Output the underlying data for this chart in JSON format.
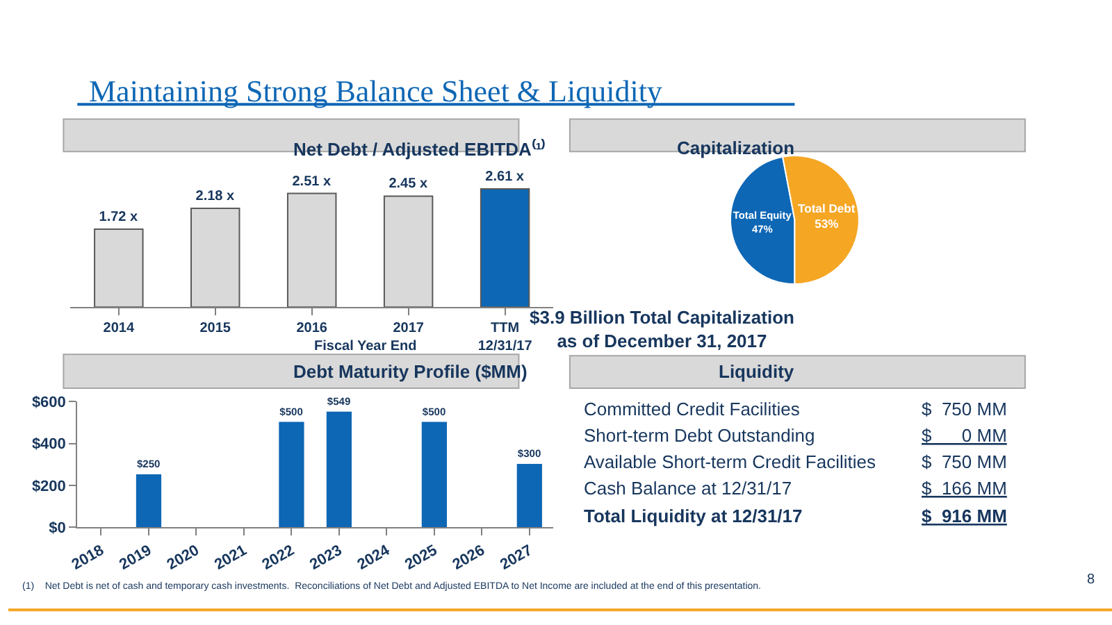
{
  "chart_data": [
    {
      "type": "bar",
      "title": "Net Debt / Adjusted EBITDA⁽¹⁾",
      "xlabel": "Fiscal Year End",
      "categories": [
        "2014",
        "2015",
        "2016",
        "2017",
        "TTM\n12/31/17"
      ],
      "values": [
        1.72,
        2.18,
        2.51,
        2.45,
        2.61
      ],
      "colors": [
        "#d9d9d9",
        "#d9d9d9",
        "#d9d9d9",
        "#d9d9d9",
        "#0e67b5"
      ],
      "value_labels": [
        "1.72 x",
        "2.18 x",
        "2.51 x",
        "2.45 x",
        "2.61 x"
      ],
      "grid": false
    },
    {
      "type": "pie",
      "title": "Capitalization",
      "categories": [
        "Total Equity",
        "Total Debt"
      ],
      "values": [
        47,
        53
      ],
      "colors": [
        "#0e67b5",
        "#f5a623"
      ],
      "value_labels": [
        "47%",
        "53%"
      ],
      "annotations": [
        "$3.9 Billion Total Capitalization\nas of December 31, 2017"
      ]
    },
    {
      "type": "bar",
      "title": "Debt Maturity Profile ($MM)",
      "categories": [
        "2018",
        "2019",
        "2020",
        "2021",
        "2022",
        "2023",
        "2024",
        "2025",
        "2026",
        "2027"
      ],
      "values": [
        null,
        250,
        null,
        null,
        500,
        549,
        null,
        500,
        null,
        300
      ],
      "color": "#0e67b5",
      "value_labels": [
        null,
        "$250",
        null,
        null,
        "$500",
        "$549",
        null,
        "$500",
        null,
        "$300"
      ],
      "ylim": [
        0,
        600
      ],
      "yticks": [
        {
          "value": 0,
          "label": "$0"
        },
        {
          "value": 200,
          "label": "$200"
        },
        {
          "value": 400,
          "label": "$400"
        },
        {
          "value": 600,
          "label": "$600"
        }
      ],
      "grid": false
    },
    {
      "type": "other",
      "title": "Liquidity",
      "annotations": [
        "Committed Credit Facilities",
        "$  750 MM",
        "Short-term Debt Outstanding",
        "$      0 MM",
        "Available Short-term Credit Facilities",
        "$  750 MM",
        "Cash Balance at 12/31/17",
        "$  166 MM",
        "Total Liquidity at 12/31/17",
        "$  916 MM",
        "Maintaining Strong Balance Sheet & Liquidity",
        "(1)    Net Debt is net of cash and temporary cash investments.  Reconciliations of Net Debt and Adjusted EBITDA to Net Income are included at the end of this presentation.",
        "8"
      ]
    }
  ]
}
